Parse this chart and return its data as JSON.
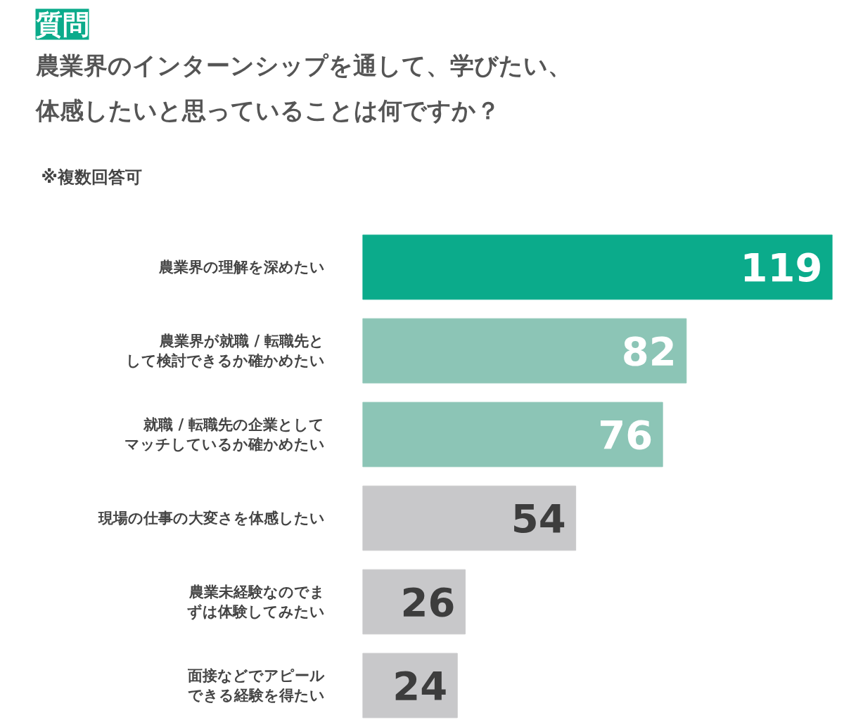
{
  "chart_data": {
    "type": "bar",
    "orientation": "horizontal",
    "title": "農業界のインターンシップを通して、学びたい、体感したいと思っていることは何ですか？",
    "subtitle": "※複数回答可",
    "annotations": [
      "質問"
    ],
    "categories": [
      "農業界の理解を深めたい",
      "農業界が就職 / 転職先として検討できるか確かめたい",
      "就職 / 転職先の企業としてマッチしているか確かめたい",
      "現場の仕事の大変さを体感したい",
      "農業未経験なのでまずは体験してみたい",
      "面接などでアピールできる経験を得たい"
    ],
    "values": [
      119,
      82,
      76,
      54,
      26,
      24
    ],
    "colors": [
      "#0bab8b",
      "#8cc5b6",
      "#8cc5b6",
      "#c8c8ca",
      "#c8c8ca",
      "#c8c8ca"
    ],
    "data_labels": true,
    "grid": false
  }
}
